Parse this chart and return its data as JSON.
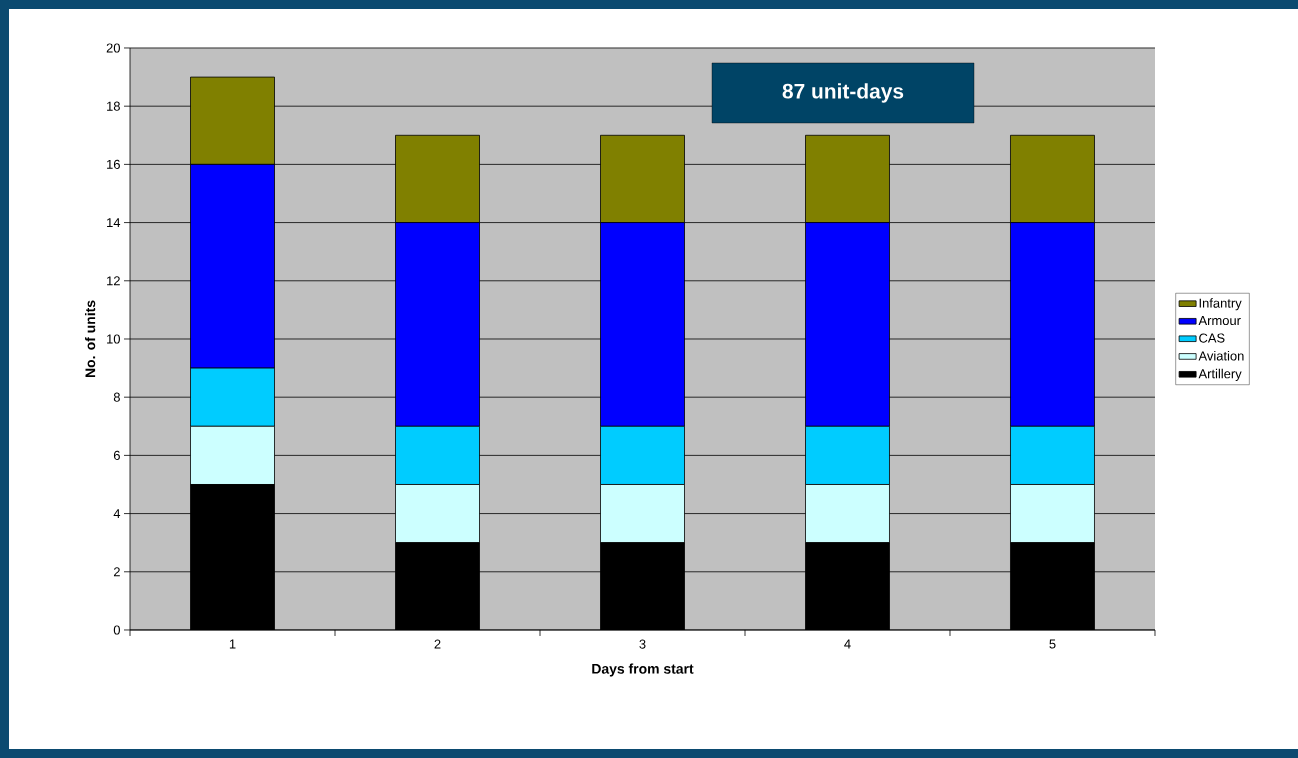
{
  "chart_data": {
    "type": "bar",
    "stacked": true,
    "xlabel": "Days from start",
    "ylabel": "No. of units",
    "categories": [
      "1",
      "2",
      "3",
      "4",
      "5"
    ],
    "series": [
      {
        "name": "Artillery",
        "color": "#000000",
        "values": [
          5,
          3,
          3,
          3,
          3
        ]
      },
      {
        "name": "Aviation",
        "color": "#ccffff",
        "values": [
          2,
          2,
          2,
          2,
          2
        ]
      },
      {
        "name": "CAS",
        "color": "#00ccff",
        "values": [
          2,
          2,
          2,
          2,
          2
        ]
      },
      {
        "name": "Armour",
        "color": "#0000ff",
        "values": [
          7,
          7,
          7,
          7,
          7
        ]
      },
      {
        "name": "Infantry",
        "color": "#808000",
        "values": [
          3,
          3,
          3,
          3,
          3
        ]
      }
    ],
    "ylim": [
      0,
      20
    ],
    "yticks": [
      0,
      2,
      4,
      6,
      8,
      10,
      12,
      14,
      16,
      18,
      20
    ],
    "grid": "y",
    "legend": "right",
    "annotations": [
      "87 unit-days"
    ]
  }
}
